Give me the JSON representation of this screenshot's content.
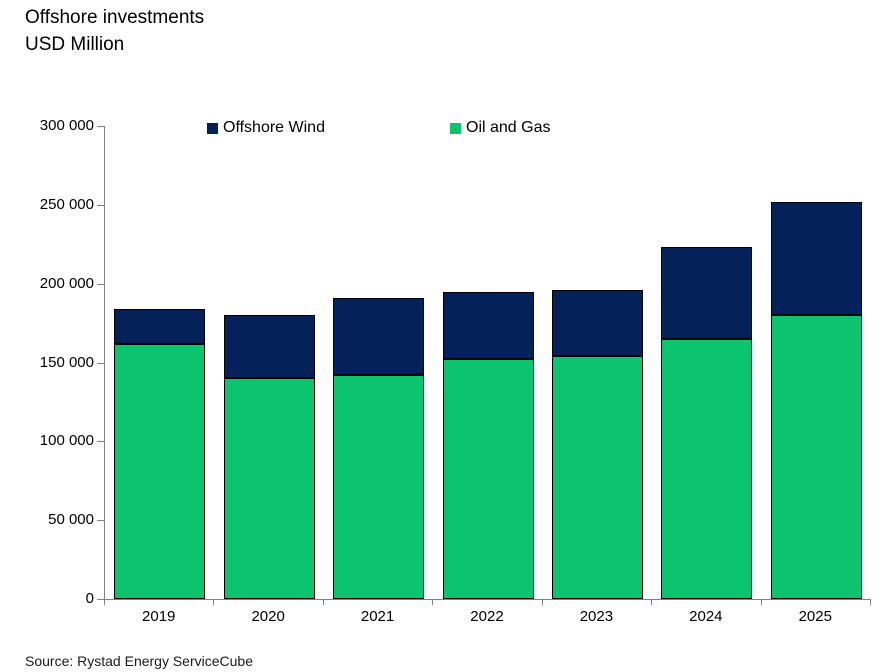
{
  "title": {
    "line1": "Offshore investments",
    "line2": "USD Million"
  },
  "source": "Source: Rystad Energy ServiceCube",
  "chart_data": {
    "type": "bar",
    "stacked": true,
    "title": "Offshore investments",
    "subtitle": "USD Million",
    "xlabel": "",
    "ylabel": "USD Million",
    "categories": [
      "2019",
      "2020",
      "2021",
      "2022",
      "2023",
      "2024",
      "2025"
    ],
    "series": [
      {
        "name": "Oil and Gas",
        "color": "#0BC46D",
        "values": [
          162000,
          140000,
          142000,
          152000,
          154000,
          165000,
          180000
        ]
      },
      {
        "name": "Offshore Wind",
        "color": "#04215A",
        "values": [
          22000,
          40000,
          49000,
          43000,
          42000,
          58000,
          72000
        ]
      }
    ],
    "totals": [
      184000,
      180000,
      191000,
      195000,
      196000,
      223000,
      252000
    ],
    "legend": [
      {
        "label": "Offshore Wind",
        "color": "#04215A"
      },
      {
        "label": "Oil and Gas",
        "color": "#0BC46D"
      }
    ],
    "legend_position": "top",
    "ylim": [
      0,
      300000
    ],
    "yticks": [
      {
        "value": 0,
        "label": "0"
      },
      {
        "value": 50000,
        "label": "50 000"
      },
      {
        "value": 100000,
        "label": "100 000"
      },
      {
        "value": 150000,
        "label": "150 000"
      },
      {
        "value": 200000,
        "label": "200 000"
      },
      {
        "value": 250000,
        "label": "250 000"
      },
      {
        "value": 300000,
        "label": "300 000"
      }
    ],
    "grid": false,
    "axis_color": "#808080",
    "bar_border_color": "#000000"
  }
}
